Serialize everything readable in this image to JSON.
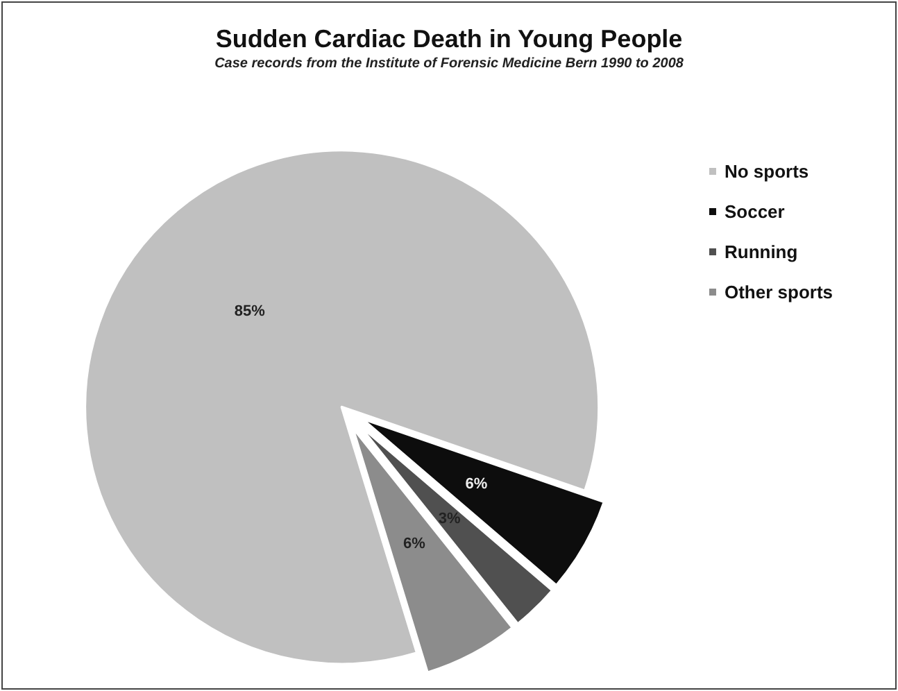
{
  "chart_data": {
    "type": "pie",
    "title": "Sudden Cardiac Death in Young People",
    "subtitle": "Case records from the Institute of Forensic Medicine Bern 1990 to 2008",
    "categories": [
      "No sports",
      "Soccer",
      "Running",
      "Other sports"
    ],
    "values": [
      85,
      6,
      3,
      6
    ],
    "value_labels": [
      "85%",
      "6%",
      "3%",
      "6%"
    ],
    "colors": [
      "#c0c0c0",
      "#0d0d0d",
      "#505050",
      "#8c8c8c"
    ],
    "legend": "right"
  }
}
